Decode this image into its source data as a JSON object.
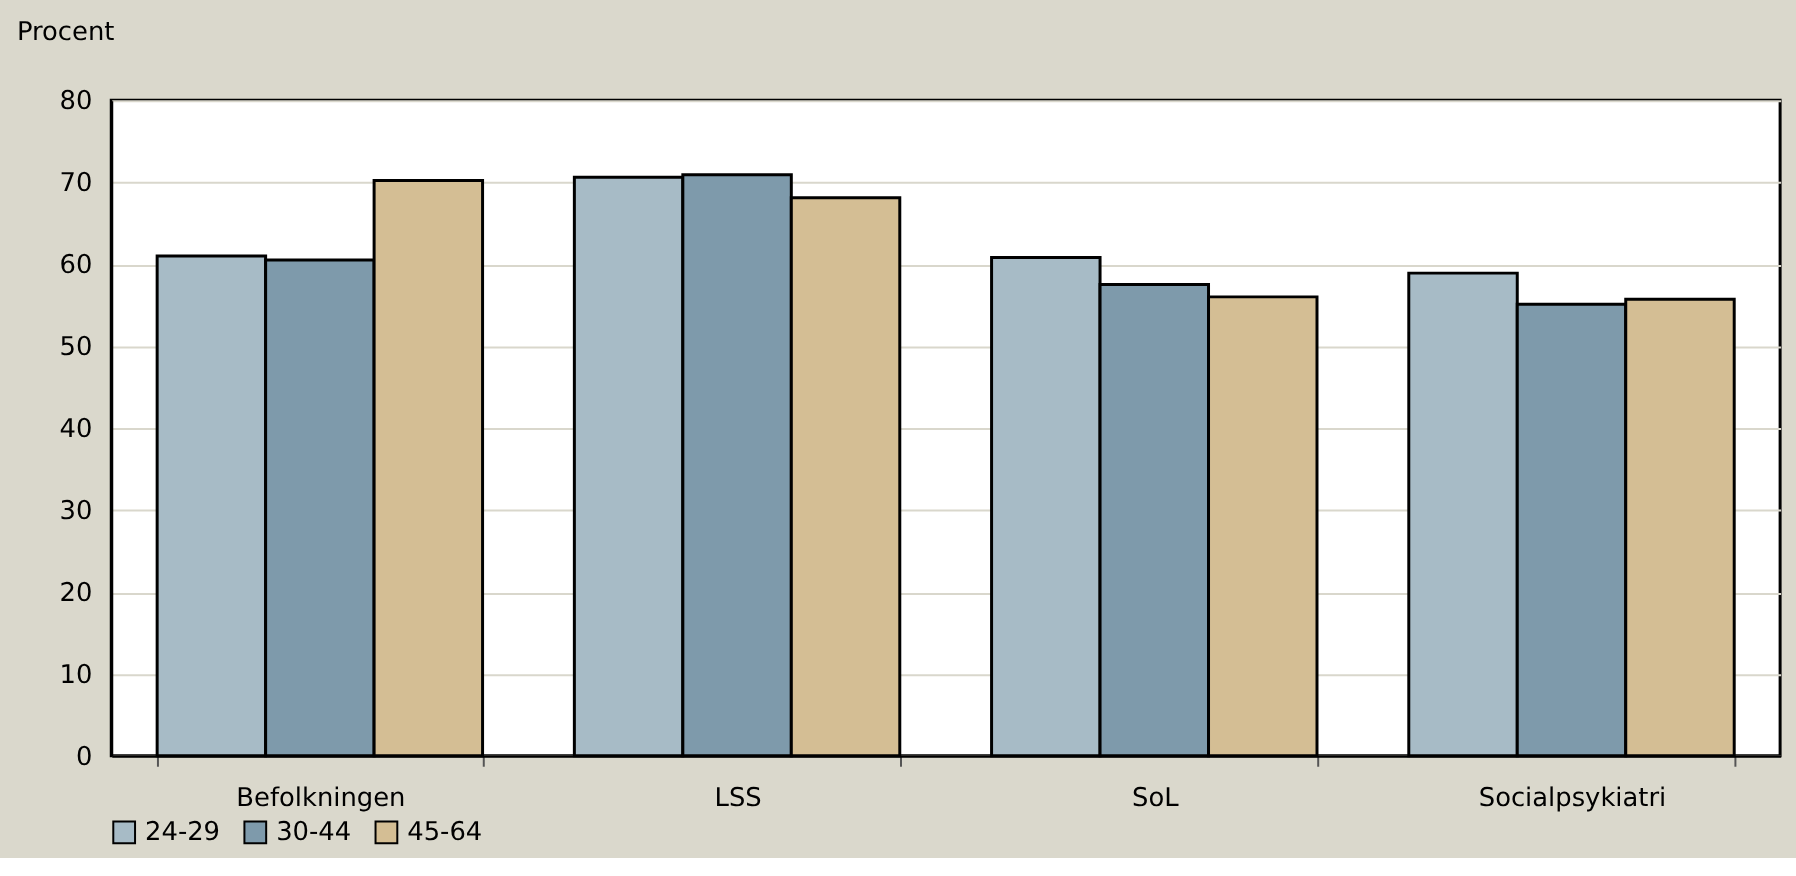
{
  "chart_data": {
    "type": "bar",
    "ylabel": "Procent",
    "categories": [
      "Befolkningen",
      "LSS",
      "SoL",
      "Socialpsykiatri"
    ],
    "series": [
      {
        "name": "24-29",
        "color": "#a7bbc6",
        "values": [
          61.0,
          70.6,
          60.8,
          58.9
        ]
      },
      {
        "name": "30-44",
        "color": "#7e9aab",
        "values": [
          60.5,
          70.9,
          57.5,
          55.1
        ]
      },
      {
        "name": "45-64",
        "color": "#d4be94",
        "values": [
          70.2,
          68.1,
          56.0,
          55.7
        ]
      }
    ],
    "ylim": [
      0,
      80
    ],
    "yticks": [
      0,
      10,
      20,
      30,
      40,
      50,
      60,
      70,
      80
    ],
    "grid": "y",
    "legend": "bottom"
  }
}
